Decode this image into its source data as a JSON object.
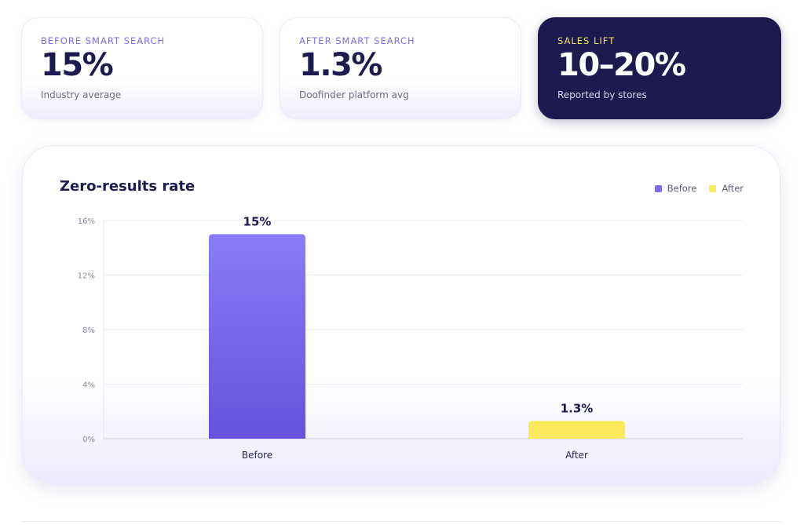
{
  "stats": [
    {
      "label": "BEFORE SMART SEARCH",
      "value": "15%",
      "sub": "Industry average"
    },
    {
      "label": "AFTER SMART SEARCH",
      "value": "1.3%",
      "sub": "Doofinder platform avg"
    },
    {
      "label": "SALES LIFT",
      "value": "10–20%",
      "sub": "Reported by stores"
    }
  ],
  "colors": {
    "before_top": "#8a7cf6",
    "before_bottom": "#6652dc",
    "after": "#fcea5c",
    "accent": "#7b6cf0",
    "navy": "#1d1a4f",
    "sales_label": "#f2e35a"
  },
  "chart_data": {
    "type": "bar",
    "title": "Zero-results rate",
    "categories": [
      "Before",
      "After"
    ],
    "series": [
      {
        "name": "Before",
        "values": [
          15,
          null
        ]
      },
      {
        "name": "After",
        "values": [
          null,
          1.3
        ]
      }
    ],
    "values": [
      15,
      1.3
    ],
    "value_labels": [
      "15%",
      "1.3%"
    ],
    "y_ticks": [
      0,
      4,
      8,
      12,
      16
    ],
    "y_tick_labels": [
      "0%",
      "4%",
      "8%",
      "12%",
      "16%"
    ],
    "ylim": [
      0,
      16
    ],
    "grid": true,
    "legend": [
      "Before",
      "After"
    ],
    "legend_position": "top-right"
  }
}
